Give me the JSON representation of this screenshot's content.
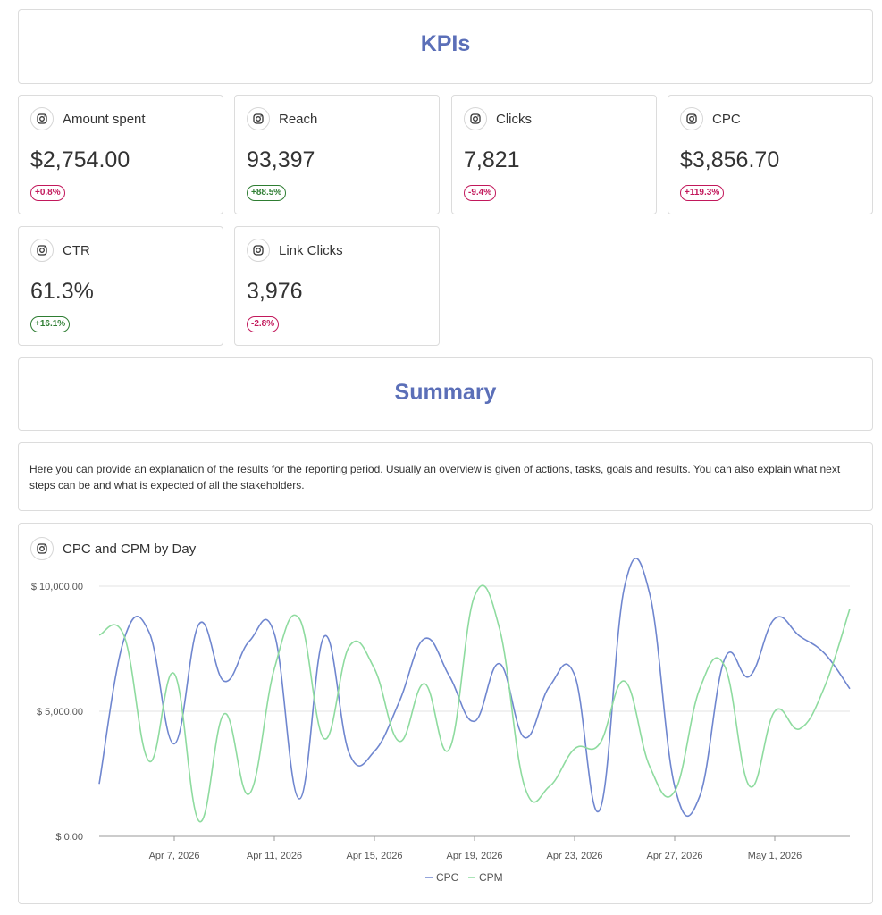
{
  "kpis_heading": "KPIs",
  "kpis": [
    {
      "title": "Amount spent",
      "value": "$2,754.00",
      "change": "+0.8%",
      "trend": "neg"
    },
    {
      "title": "Reach",
      "value": "93,397",
      "change": "+88.5%",
      "trend": "pos"
    },
    {
      "title": "Clicks",
      "value": "7,821",
      "change": "-9.4%",
      "trend": "neg"
    },
    {
      "title": "CPC",
      "value": "$3,856.70",
      "change": "+119.3%",
      "trend": "neg"
    },
    {
      "title": "CTR",
      "value": "61.3%",
      "change": "+16.1%",
      "trend": "pos"
    },
    {
      "title": "Link Clicks",
      "value": "3,976",
      "change": "-2.8%",
      "trend": "neg"
    }
  ],
  "summary_heading": "Summary",
  "summary_text": "Here you can provide an explanation of the results for the reporting period. Usually an overview is given of actions, tasks, goals and results. You can also explain what next steps can be and what is expected of all the stakeholders.",
  "chart_title": "CPC and CPM by Day",
  "icon": "instagram-icon",
  "colors": {
    "heading": "#5b6fb8",
    "cpc": "#6f86cf",
    "cpm": "#8edb9f",
    "negative": "#c2185b",
    "positive": "#2e7d32"
  },
  "chart_data": {
    "type": "line",
    "title": "CPC and CPM by Day",
    "xlabel": "",
    "ylabel": "",
    "ylim": [
      0,
      10000
    ],
    "y_ticks": [
      "$ 0.00",
      "$ 5,000.00",
      "$ 10,000.00"
    ],
    "x_tick_labels": [
      "Apr 7, 2026",
      "Apr 11, 2026",
      "Apr 15, 2026",
      "Apr 19, 2026",
      "Apr 23, 2026",
      "Apr 27, 2026",
      "May 1, 2026"
    ],
    "x": [
      "2026-04-04",
      "2026-04-05",
      "2026-04-06",
      "2026-04-07",
      "2026-04-08",
      "2026-04-09",
      "2026-04-10",
      "2026-04-11",
      "2026-04-12",
      "2026-04-13",
      "2026-04-14",
      "2026-04-15",
      "2026-04-16",
      "2026-04-17",
      "2026-04-18",
      "2026-04-19",
      "2026-04-20",
      "2026-04-21",
      "2026-04-22",
      "2026-04-23",
      "2026-04-24",
      "2026-04-25",
      "2026-04-26",
      "2026-04-27",
      "2026-04-28",
      "2026-04-29",
      "2026-04-30",
      "2026-05-01",
      "2026-05-02",
      "2026-05-03",
      "2026-05-04"
    ],
    "series": [
      {
        "name": "CPC",
        "values": [
          2100,
          7900,
          8150,
          3700,
          8500,
          6200,
          7800,
          8100,
          1500,
          8000,
          3300,
          3400,
          5400,
          7900,
          6400,
          4600,
          6900,
          3950,
          6000,
          6450,
          1050,
          10000,
          9700,
          2000,
          1600,
          7100,
          6400,
          8700,
          8000,
          7300,
          5900
        ]
      },
      {
        "name": "CPM",
        "values": [
          8050,
          8000,
          3000,
          6500,
          600,
          4900,
          1700,
          6700,
          8700,
          3900,
          7600,
          6700,
          3800,
          6100,
          3500,
          9600,
          8300,
          2000,
          2000,
          3500,
          3700,
          6200,
          2800,
          1800,
          5900,
          6800,
          2000,
          5000,
          4300,
          6000,
          9100
        ]
      }
    ],
    "legend": "bottom",
    "grid": true
  }
}
